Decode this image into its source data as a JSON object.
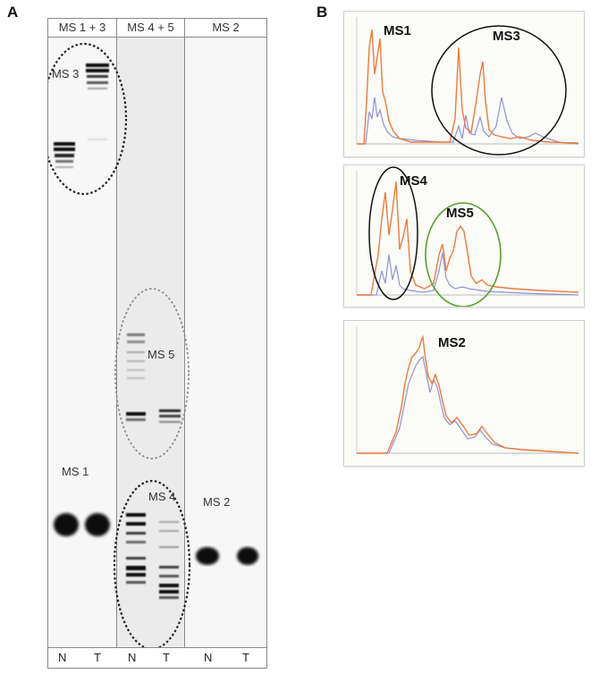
{
  "panels": {
    "a": {
      "letter": "A"
    },
    "b": {
      "letter": "B"
    }
  },
  "gel": {
    "columns": [
      "MS 1 + 3",
      "MS 4 + 5",
      "MS 2"
    ],
    "lane_labels": [
      "N",
      "T",
      "N",
      "T",
      "N",
      "T"
    ],
    "band_labels": {
      "ms3": "MS 3",
      "ms5": "MS 5",
      "ms1": "MS 1",
      "ms4": "MS 4",
      "ms2": "MS 2"
    },
    "colors": {
      "band": "#111111",
      "circle": "#222222",
      "circle_light": "#8c8c8c"
    }
  },
  "electropherograms": [
    {
      "peak_labels": [
        "MS1",
        "MS3"
      ],
      "circle_colors": [
        "#111111"
      ]
    },
    {
      "peak_labels": [
        "MS4",
        "MS5"
      ],
      "circle_colors": [
        "#111111",
        "#5aa02c"
      ]
    },
    {
      "peak_labels": [
        "MS2"
      ],
      "circle_colors": []
    }
  ],
  "colors": {
    "trace_orange": "#ee7b3a",
    "trace_blue": "#8f92d6"
  }
}
